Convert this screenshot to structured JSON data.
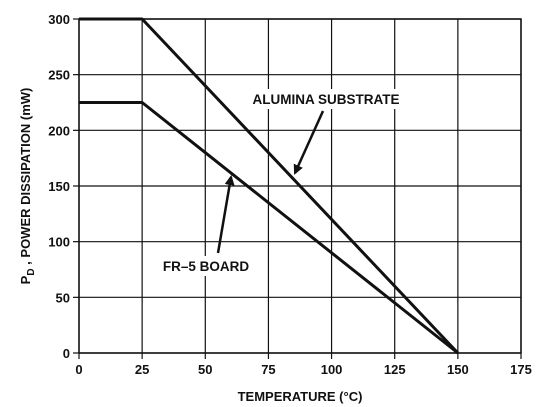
{
  "chart_data": {
    "type": "line",
    "title": "",
    "xlabel": "TEMPERATURE (°C)",
    "ylabel_main": "P",
    "ylabel_sub": "D",
    "ylabel_rest": " , POWER DISSIPATION (mW)",
    "xlim": [
      0,
      175
    ],
    "ylim": [
      0,
      300
    ],
    "xticks": [
      "0",
      "25",
      "50",
      "75",
      "100",
      "125",
      "150",
      "175"
    ],
    "yticks": [
      "0",
      "50",
      "100",
      "150",
      "200",
      "250",
      "300"
    ],
    "grid": true,
    "series": [
      {
        "name": "ALUMINA SUBSTRATE",
        "x": [
          0,
          25,
          150
        ],
        "y": [
          300,
          300,
          0
        ]
      },
      {
        "name": "FR–5 BOARD",
        "x": [
          0,
          25,
          150
        ],
        "y": [
          225,
          225,
          0
        ]
      }
    ],
    "annotations": [
      {
        "text": "ALUMINA SUBSTRATE",
        "series": 0
      },
      {
        "text": "FR–5 BOARD",
        "series": 1
      }
    ]
  }
}
